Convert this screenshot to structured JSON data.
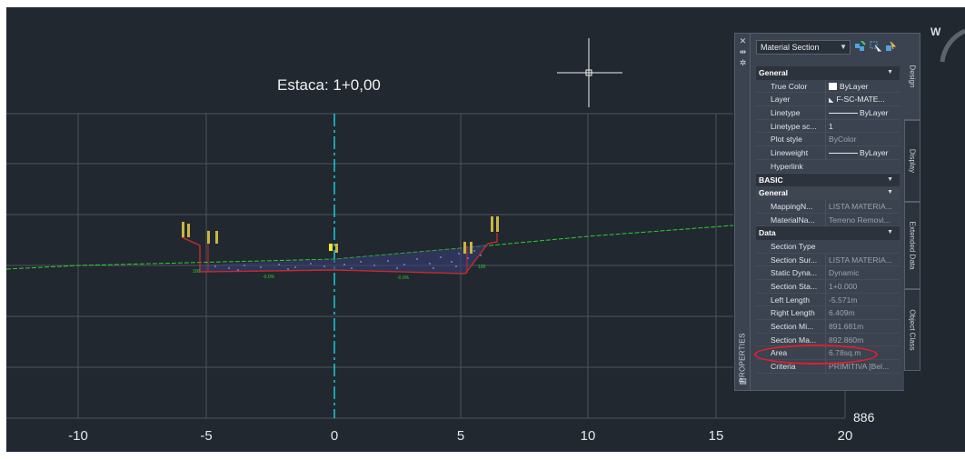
{
  "drawing": {
    "station_label": "Estaca: 1+0,00",
    "elevation_label": "886",
    "x_axis": {
      "ticks": [
        -10,
        -5,
        0,
        5,
        10,
        15,
        20
      ],
      "tick_labels": [
        "-10",
        "-5",
        "0",
        "5",
        "10",
        "15",
        "20"
      ]
    },
    "colors": {
      "background": "#212830",
      "grid": "#5a6068",
      "centerline": "#19d8e0",
      "ground": "#2ecf2e",
      "design": "#c42b2b"
    }
  },
  "compass": {
    "label": "W"
  },
  "palette": {
    "title": "PROPERTIES",
    "object_type": "Material Section",
    "tabs": [
      "Design",
      "Display",
      "Extended Data",
      "Object Class"
    ],
    "strip_icons": [
      "close-icon",
      "pin-icon",
      "settings-icon"
    ],
    "sections": [
      {
        "name": "General",
        "properties": [
          {
            "name": "True Color",
            "value": "ByLayer",
            "swatch": "#ffffff"
          },
          {
            "name": "Layer",
            "value": "F-SC-MATE..."
          },
          {
            "name": "Linetype",
            "value": "ByLayer"
          },
          {
            "name": "Linetype sc...",
            "value": "1"
          },
          {
            "name": "Plot style",
            "value": "ByColor"
          },
          {
            "name": "Lineweight",
            "value": "ByLayer"
          },
          {
            "name": "Hyperlink",
            "value": ""
          }
        ]
      },
      {
        "name": "BASIC",
        "properties": []
      },
      {
        "name": "General",
        "properties": [
          {
            "name": "MappingN...",
            "value": "LISTA MATERIA..."
          },
          {
            "name": "MaterialNa...",
            "value": "Terreno Removi..."
          }
        ]
      },
      {
        "name": "Data",
        "properties": [
          {
            "name": "Section Type",
            "value": ""
          },
          {
            "name": "Section Sur...",
            "value": "LISTA MATERIA..."
          },
          {
            "name": "Static Dyna...",
            "value": "Dynamic"
          },
          {
            "name": "Section Sta...",
            "value": "1+0.000"
          },
          {
            "name": "Left Length",
            "value": "-5.571m"
          },
          {
            "name": "Right Length",
            "value": "6.409m"
          },
          {
            "name": "Section Mi...",
            "value": "891.681m"
          },
          {
            "name": "Section Ma...",
            "value": "892.860m"
          },
          {
            "name": "Area",
            "value": "6.78sq.m"
          },
          {
            "name": "Criteria",
            "value": "PRIMITIVA [Bel..."
          }
        ]
      }
    ]
  }
}
